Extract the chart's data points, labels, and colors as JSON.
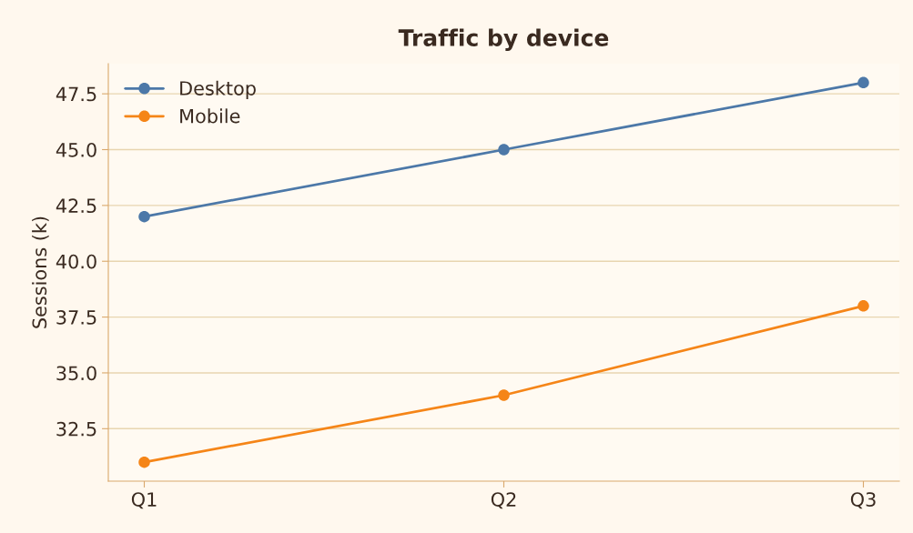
{
  "chart_data": {
    "type": "line",
    "title": "Traffic by device",
    "ylabel": "Sessions (k)",
    "categories": [
      "Q1",
      "Q2",
      "Q3"
    ],
    "series": [
      {
        "name": "Desktop",
        "color": "#4c78a8",
        "values": [
          42,
          45,
          48
        ]
      },
      {
        "name": "Mobile",
        "color": "#f58518",
        "values": [
          31,
          34,
          38
        ]
      }
    ],
    "ylim": [
      30.15,
      48.85
    ],
    "yticks": [
      {
        "value": 32.5,
        "label": "32.5"
      },
      {
        "value": 35,
        "label": "35.0"
      },
      {
        "value": 37.5,
        "label": "37.5"
      },
      {
        "value": 40,
        "label": "40.0"
      },
      {
        "value": 42.5,
        "label": "42.5"
      },
      {
        "value": 45,
        "label": "45.0"
      },
      {
        "value": 47.5,
        "label": "47.5"
      }
    ],
    "grid": "y",
    "legend": "top left",
    "marker": "circle",
    "line_style": "solid"
  }
}
